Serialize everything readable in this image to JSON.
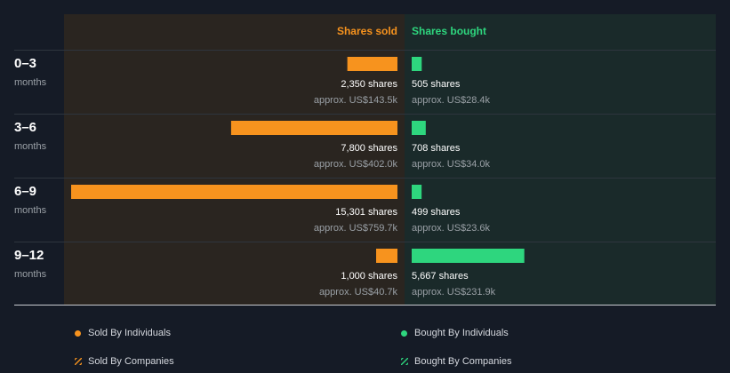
{
  "colors": {
    "background": "#151b26",
    "sold_panel": "#2a2520",
    "bought_panel": "#1a2a2a",
    "sold": "#f7931e",
    "bought": "#2ed67e",
    "text_muted": "#9aa0a6",
    "divider": "#3a4048"
  },
  "headers": {
    "sold": "Shares sold",
    "bought": "Shares bought"
  },
  "chart_data": {
    "type": "bar",
    "orientation": "horizontal-diverging",
    "categories": [
      {
        "label": "0–3",
        "sub": "months"
      },
      {
        "label": "3–6",
        "sub": "months"
      },
      {
        "label": "6–9",
        "sub": "months"
      },
      {
        "label": "9–12",
        "sub": "months"
      }
    ],
    "series": [
      {
        "name": "Shares sold",
        "values": [
          2350,
          7800,
          15301,
          1000
        ],
        "value_labels": [
          "2,350 shares",
          "7,800 shares",
          "15,301 shares",
          "1,000 shares"
        ],
        "amount_labels": [
          "approx. US$143.5k",
          "approx. US$402.0k",
          "approx. US$759.7k",
          "approx. US$40.7k"
        ]
      },
      {
        "name": "Shares bought",
        "values": [
          505,
          708,
          499,
          5667
        ],
        "value_labels": [
          "505 shares",
          "708 shares",
          "499 shares",
          "5,667 shares"
        ],
        "amount_labels": [
          "approx. US$28.4k",
          "approx. US$34.0k",
          "approx. US$23.6k",
          "approx. US$231.9k"
        ]
      }
    ],
    "sold_max": 15301,
    "bought_max": 15301
  },
  "legend": [
    {
      "label": "Sold By Individuals",
      "style": "dot",
      "color": "#f7931e"
    },
    {
      "label": "Bought By Individuals",
      "style": "dot",
      "color": "#2ed67e"
    },
    {
      "label": "Sold By Companies",
      "style": "hatch",
      "color": "#f7931e"
    },
    {
      "label": "Bought By Companies",
      "style": "hatch",
      "color": "#2ed67e"
    }
  ]
}
